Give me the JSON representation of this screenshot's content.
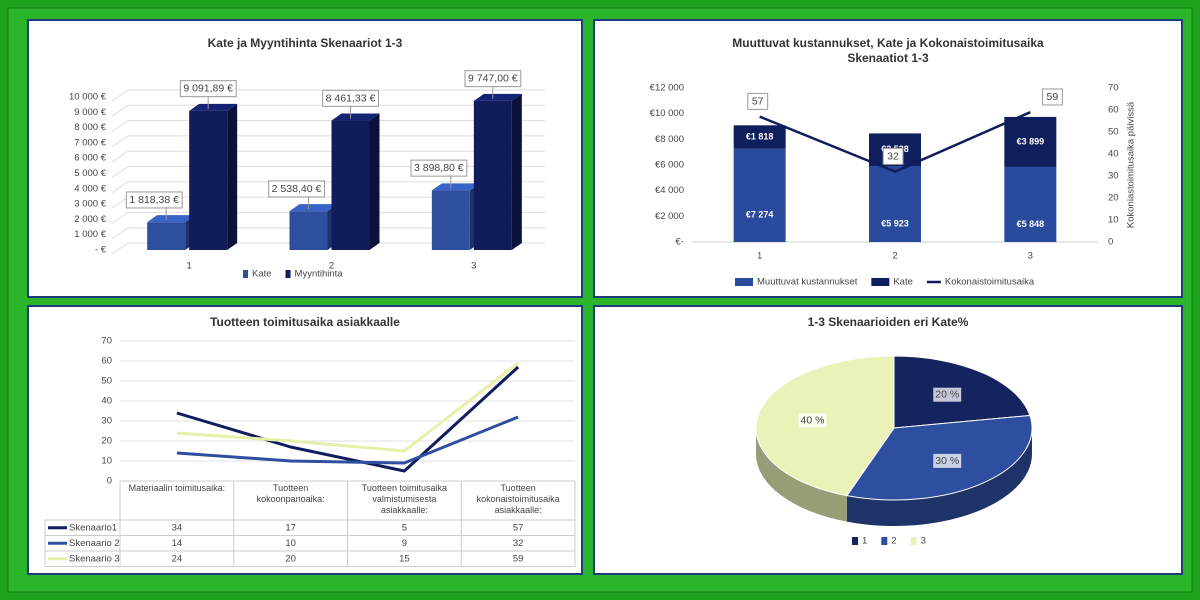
{
  "chart_data": [
    {
      "type": "bar",
      "title": "Kate ja Myyntihinta Skenaariot 1-3",
      "three_d": true,
      "grid": true,
      "legend": "bottom",
      "categories": [
        "1",
        "2",
        "3"
      ],
      "series": [
        {
          "name": "Kate",
          "color": "#2e4fa0",
          "values": [
            1818.38,
            2538.4,
            3898.8
          ],
          "value_labels": [
            "1 818,38 €",
            "2 538,40 €",
            "3 898,80 €"
          ]
        },
        {
          "name": "Myyntihinta",
          "color": "#101c5c",
          "values": [
            9091.89,
            8461.33,
            9747.0
          ],
          "value_labels": [
            "9 091,89 €",
            "8 461,33 €",
            "9 747,00 €"
          ]
        }
      ],
      "ylim": [
        0,
        10000
      ],
      "yticks": [
        {
          "value": 0,
          "label": "- €"
        },
        {
          "value": 1000,
          "label": "1 000 €"
        },
        {
          "value": 2000,
          "label": "2 000 €"
        },
        {
          "value": 3000,
          "label": "3 000 €"
        },
        {
          "value": 4000,
          "label": "4 000 €"
        },
        {
          "value": 5000,
          "label": "5 000 €"
        },
        {
          "value": 6000,
          "label": "6 000 €"
        },
        {
          "value": 7000,
          "label": "7 000 €"
        },
        {
          "value": 8000,
          "label": "8 000 €"
        },
        {
          "value": 9000,
          "label": "9 000 €"
        },
        {
          "value": 10000,
          "label": "10 000 €"
        }
      ]
    },
    {
      "type": "combo",
      "title": "Muuttuvat kustannukset, Kate ja Kokonaistoimitusaika Skenaatiot 1-3",
      "stacked": true,
      "legend": "bottom",
      "y2label": "Kokoniastoimitusaika päivissä",
      "categories": [
        "1",
        "2",
        "3"
      ],
      "series": [
        {
          "name": "Muuttuvat kustannukset",
          "type": "bar",
          "color": "#2a4a9e",
          "values": [
            7274,
            5923,
            5848
          ],
          "value_labels": [
            "€7 274",
            "€5 923",
            "€5 848"
          ]
        },
        {
          "name": "Kate",
          "type": "bar",
          "color": "#0f1e5c",
          "values": [
            1818,
            2538,
            3899
          ],
          "value_labels": [
            "€1 818",
            "€2 538",
            "€3 899"
          ]
        },
        {
          "name": "Kokonaistoimitusaika",
          "type": "line",
          "axis": "y2",
          "color": "#101c5c",
          "values": [
            57,
            32,
            59
          ]
        }
      ],
      "ylim": [
        0,
        12000
      ],
      "yticks": [
        {
          "value": 0,
          "label": "€-"
        },
        {
          "value": 2000,
          "label": "€2 000"
        },
        {
          "value": 4000,
          "label": "€4 000"
        },
        {
          "value": 6000,
          "label": "€6 000"
        },
        {
          "value": 8000,
          "label": "€8 000"
        },
        {
          "value": 10000,
          "label": "€10 000"
        },
        {
          "value": 12000,
          "label": "€12 000"
        }
      ],
      "y2lim": [
        0,
        70
      ],
      "y2ticks": [
        0,
        10,
        20,
        30,
        40,
        50,
        60,
        70
      ]
    },
    {
      "type": "line",
      "title": "Tuotteen toimitusaika asiakkaalle",
      "grid": true,
      "data_table": true,
      "categories": [
        "Materiaalin toimitusaika:",
        "Tuotteen kokoonpanoaika:",
        "Tuotteen toimitusaika valmistumisesta asiakkaalle:",
        "Tuotteen kokonaistoimitusaika asiakkaalle:"
      ],
      "series": [
        {
          "name": "Skenaario1",
          "color": "#101c5c",
          "values": [
            34,
            17,
            5,
            57
          ]
        },
        {
          "name": "Skenaario 2",
          "color": "#2e4fa0",
          "values": [
            14,
            10,
            9,
            32
          ]
        },
        {
          "name": "Skenaario 3",
          "color": "#e6f0a8",
          "values": [
            24,
            20,
            15,
            59
          ]
        }
      ],
      "ylim": [
        0,
        70
      ],
      "yticks": [
        0,
        10,
        20,
        30,
        40,
        50,
        60,
        70
      ]
    },
    {
      "type": "pie",
      "title": "1-3 Skenaarioiden eri Kate%",
      "three_d": true,
      "legend": "bottom",
      "categories": [
        "1",
        "2",
        "3"
      ],
      "values": [
        20,
        30,
        40
      ],
      "value_labels": [
        "20 %",
        "30 %",
        "40 %"
      ],
      "colors": [
        "#15245f",
        "#2e4fa0",
        "#eaf2b8"
      ]
    }
  ]
}
